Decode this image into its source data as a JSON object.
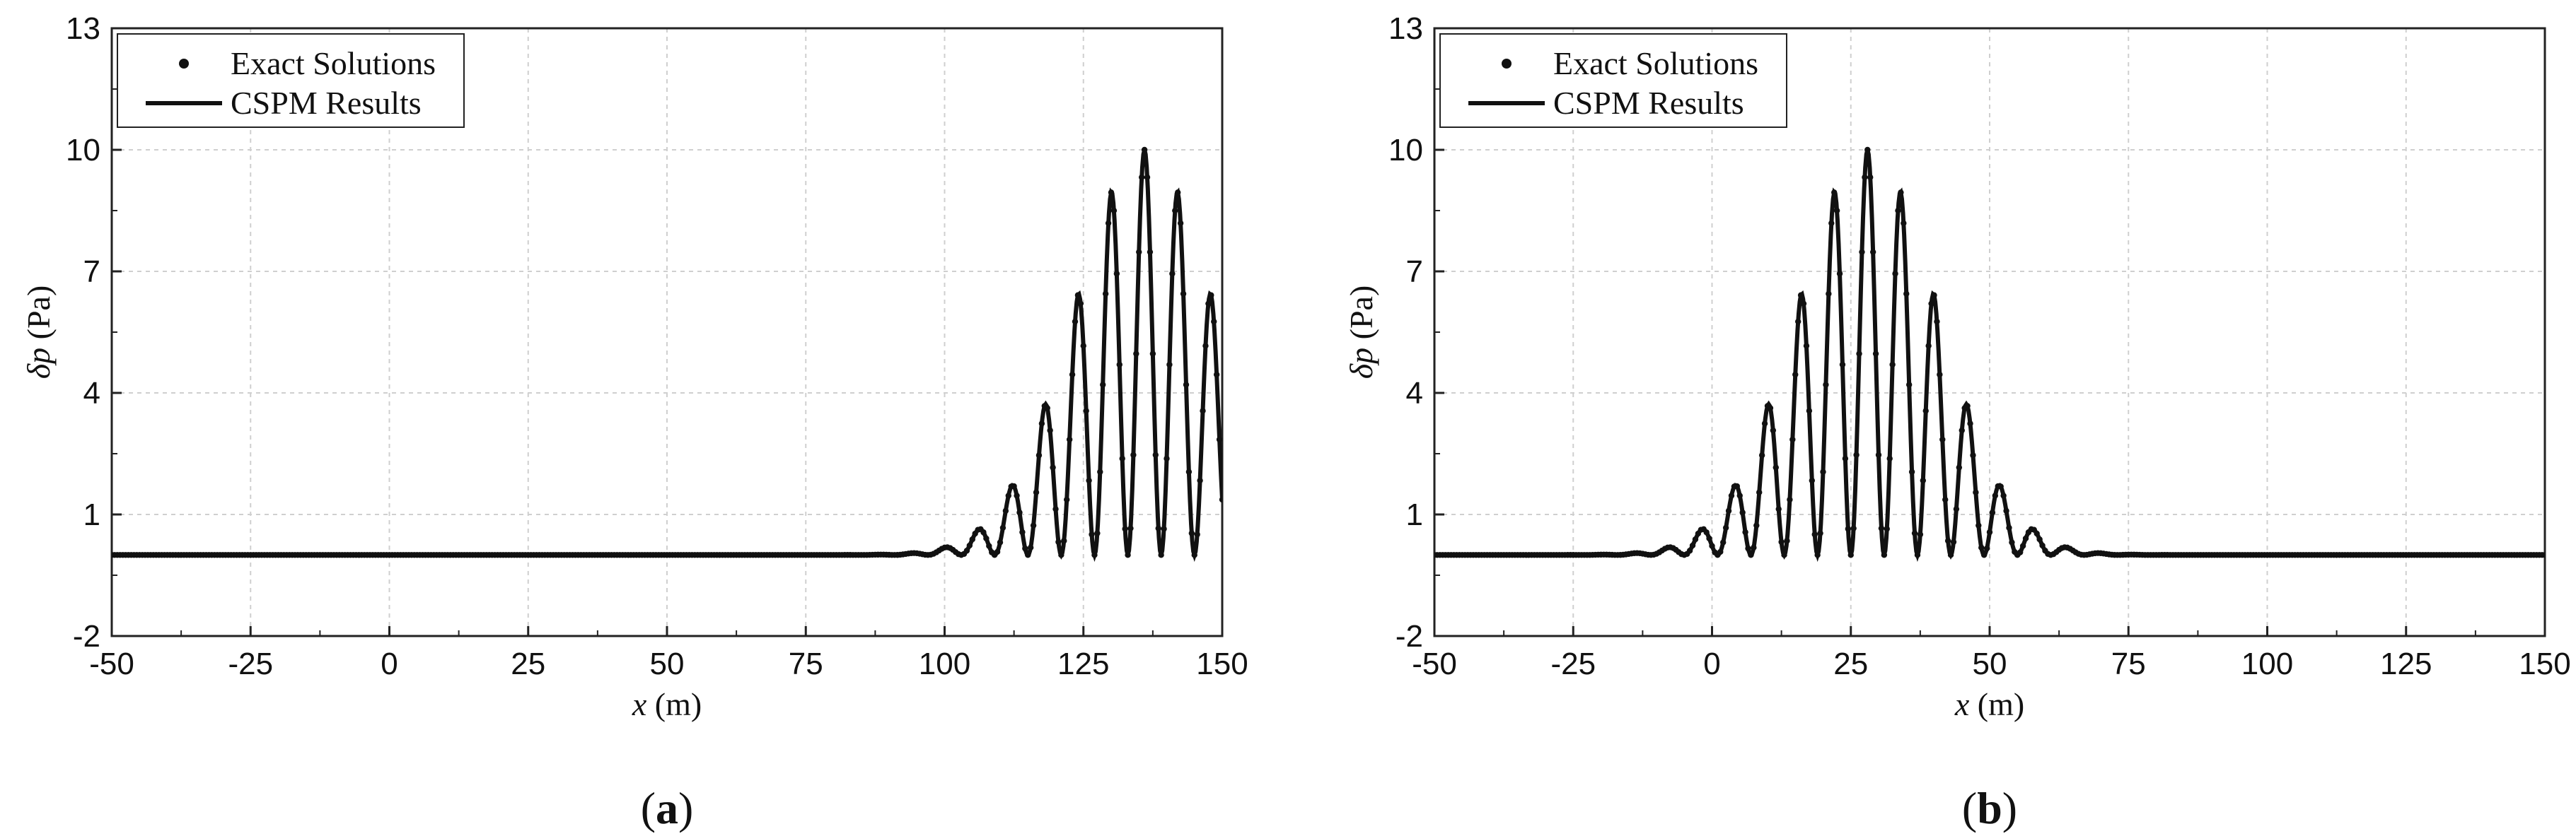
{
  "chart_data": [
    {
      "type": "line",
      "panel_label": "a",
      "xlabel_var": "x",
      "xlabel_unit": " (m)",
      "ylabel_var": "δp",
      "ylabel_unit": " (Pa)",
      "xlim": [
        -50,
        150
      ],
      "ylim": [
        -2,
        13
      ],
      "xticks": [
        -50,
        -25,
        0,
        25,
        50,
        75,
        100,
        125,
        150
      ],
      "yticks": [
        -2,
        1,
        4,
        7,
        10,
        13
      ],
      "grid": true,
      "legend_position": "top-left",
      "packet": {
        "center": 136,
        "amplitude": 10,
        "wavenumber": 1.0472,
        "width": 18,
        "baseline": 0
      },
      "series": [
        {
          "name": "Exact Solutions",
          "style": "dots",
          "color": "#111111"
        },
        {
          "name": "CSPM Results",
          "style": "line",
          "color": "#111111"
        }
      ]
    },
    {
      "type": "line",
      "panel_label": "b",
      "xlabel_var": "x",
      "xlabel_unit": " (m)",
      "ylabel_var": "δp",
      "ylabel_unit": " (Pa)",
      "xlim": [
        -50,
        150
      ],
      "ylim": [
        -2,
        13
      ],
      "xticks": [
        -50,
        -25,
        0,
        25,
        50,
        75,
        100,
        125,
        150
      ],
      "yticks": [
        -2,
        1,
        4,
        7,
        10,
        13
      ],
      "grid": true,
      "legend_position": "top-left",
      "packet": {
        "center": 28,
        "amplitude": 10,
        "wavenumber": 1.0472,
        "width": 18,
        "baseline": 0
      },
      "series": [
        {
          "name": "Exact Solutions",
          "style": "dots",
          "color": "#111111"
        },
        {
          "name": "CSPM Results",
          "style": "line",
          "color": "#111111"
        }
      ]
    }
  ]
}
